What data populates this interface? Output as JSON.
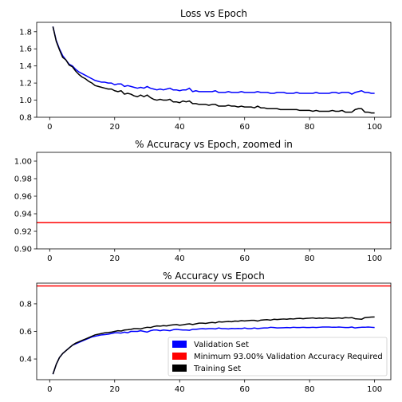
{
  "chart_data": [
    {
      "type": "line",
      "title": "Loss vs Epoch",
      "xlabel": "",
      "ylabel": "",
      "xlim": [
        -4,
        105
      ],
      "ylim": [
        0.8,
        1.91
      ],
      "xticks": [
        0,
        20,
        40,
        60,
        80,
        100
      ],
      "yticks": [
        0.8,
        1.0,
        1.2,
        1.4,
        1.6,
        1.8
      ],
      "ytick_labels": [
        "0.8",
        "1.0",
        "1.2",
        "1.4",
        "1.6",
        "1.8"
      ],
      "grid": false,
      "x_start": 1,
      "x_step": 1,
      "series": [
        {
          "color": "#0000ff",
          "values": [
            1.86,
            1.7,
            1.6,
            1.52,
            1.47,
            1.42,
            1.4,
            1.36,
            1.33,
            1.31,
            1.29,
            1.27,
            1.25,
            1.23,
            1.22,
            1.21,
            1.21,
            1.2,
            1.2,
            1.18,
            1.19,
            1.19,
            1.16,
            1.17,
            1.16,
            1.15,
            1.14,
            1.15,
            1.14,
            1.16,
            1.14,
            1.13,
            1.12,
            1.13,
            1.12,
            1.13,
            1.14,
            1.12,
            1.12,
            1.11,
            1.12,
            1.12,
            1.14,
            1.1,
            1.11,
            1.1,
            1.1,
            1.1,
            1.1,
            1.1,
            1.11,
            1.09,
            1.09,
            1.09,
            1.1,
            1.09,
            1.09,
            1.09,
            1.1,
            1.09,
            1.09,
            1.09,
            1.09,
            1.1,
            1.09,
            1.09,
            1.09,
            1.08,
            1.08,
            1.09,
            1.09,
            1.09,
            1.08,
            1.08,
            1.08,
            1.09,
            1.08,
            1.08,
            1.08,
            1.08,
            1.08,
            1.09,
            1.08,
            1.08,
            1.08,
            1.08,
            1.09,
            1.09,
            1.08,
            1.09,
            1.09,
            1.09,
            1.07,
            1.09,
            1.1,
            1.11,
            1.09,
            1.09,
            1.08,
            1.08
          ]
        },
        {
          "color": "#000000",
          "values": [
            1.86,
            1.69,
            1.59,
            1.5,
            1.47,
            1.41,
            1.39,
            1.34,
            1.3,
            1.27,
            1.25,
            1.22,
            1.2,
            1.17,
            1.16,
            1.15,
            1.14,
            1.13,
            1.13,
            1.11,
            1.1,
            1.11,
            1.07,
            1.08,
            1.07,
            1.05,
            1.04,
            1.06,
            1.04,
            1.06,
            1.03,
            1.01,
            1.0,
            1.01,
            1.0,
            1.0,
            1.01,
            0.98,
            0.98,
            0.97,
            0.99,
            0.98,
            0.99,
            0.96,
            0.96,
            0.95,
            0.95,
            0.95,
            0.94,
            0.95,
            0.95,
            0.93,
            0.93,
            0.93,
            0.94,
            0.93,
            0.93,
            0.92,
            0.93,
            0.92,
            0.92,
            0.92,
            0.91,
            0.93,
            0.91,
            0.91,
            0.9,
            0.9,
            0.9,
            0.9,
            0.89,
            0.89,
            0.89,
            0.89,
            0.89,
            0.89,
            0.88,
            0.88,
            0.88,
            0.88,
            0.87,
            0.88,
            0.87,
            0.87,
            0.87,
            0.87,
            0.88,
            0.87,
            0.87,
            0.88,
            0.86,
            0.86,
            0.86,
            0.89,
            0.9,
            0.9,
            0.86,
            0.86,
            0.85,
            0.85
          ]
        }
      ]
    },
    {
      "type": "line",
      "title": "% Accuracy vs Epoch, zoomed in",
      "xlabel": "",
      "ylabel": "",
      "xlim": [
        -4,
        105
      ],
      "ylim": [
        0.9,
        1.01
      ],
      "xticks": [
        0,
        20,
        40,
        60,
        80,
        100
      ],
      "yticks": [
        0.9,
        0.92,
        0.94,
        0.96,
        0.98,
        1.0
      ],
      "ytick_labels": [
        "0.90",
        "0.92",
        "0.94",
        "0.96",
        "0.98",
        "1.00"
      ],
      "grid": false,
      "hlines": [
        {
          "y": 0.93,
          "color": "#ff0000"
        }
      ],
      "series": []
    },
    {
      "type": "line",
      "title": "% Accuracy vs Epoch",
      "xlabel": "",
      "ylabel": "",
      "xlim": [
        -4,
        105
      ],
      "ylim": [
        0.25,
        0.95
      ],
      "xticks": [
        0,
        20,
        40,
        60,
        80,
        100
      ],
      "yticks": [
        0.4,
        0.6,
        0.8
      ],
      "ytick_labels": [
        "0.4",
        "0.6",
        "0.8"
      ],
      "grid": false,
      "x_start": 1,
      "x_step": 1,
      "legend_position": "lower-right",
      "hlines": [
        {
          "y": 0.93,
          "color": "#ff0000"
        }
      ],
      "legend": [
        {
          "label": "Validation Set",
          "color": "#0000ff"
        },
        {
          "label": "Minimum 93.00% Validation Accuracy Required",
          "color": "#ff0000"
        },
        {
          "label": "Training Set",
          "color": "#000000"
        }
      ],
      "series": [
        {
          "name": "Validation Set",
          "color": "#0000ff",
          "values": [
            0.29,
            0.36,
            0.41,
            0.44,
            0.46,
            0.48,
            0.5,
            0.51,
            0.52,
            0.53,
            0.54,
            0.55,
            0.56,
            0.565,
            0.57,
            0.575,
            0.577,
            0.58,
            0.585,
            0.59,
            0.59,
            0.588,
            0.595,
            0.59,
            0.6,
            0.6,
            0.6,
            0.605,
            0.6,
            0.595,
            0.605,
            0.61,
            0.61,
            0.605,
            0.61,
            0.608,
            0.605,
            0.612,
            0.615,
            0.612,
            0.61,
            0.61,
            0.608,
            0.615,
            0.615,
            0.618,
            0.62,
            0.618,
            0.62,
            0.62,
            0.618,
            0.625,
            0.62,
            0.62,
            0.618,
            0.622,
            0.62,
            0.622,
            0.62,
            0.625,
            0.62,
            0.62,
            0.625,
            0.62,
            0.623,
            0.625,
            0.625,
            0.63,
            0.628,
            0.625,
            0.626,
            0.627,
            0.628,
            0.627,
            0.63,
            0.628,
            0.628,
            0.63,
            0.628,
            0.628,
            0.63,
            0.628,
            0.63,
            0.632,
            0.632,
            0.632,
            0.63,
            0.63,
            0.632,
            0.63,
            0.628,
            0.628,
            0.632,
            0.625,
            0.628,
            0.63,
            0.63,
            0.632,
            0.63,
            0.628
          ]
        },
        {
          "name": "Training Set",
          "color": "#000000",
          "values": [
            0.29,
            0.36,
            0.41,
            0.44,
            0.46,
            0.48,
            0.5,
            0.515,
            0.525,
            0.535,
            0.545,
            0.555,
            0.565,
            0.575,
            0.58,
            0.585,
            0.59,
            0.592,
            0.595,
            0.6,
            0.605,
            0.603,
            0.61,
            0.612,
            0.615,
            0.62,
            0.62,
            0.618,
            0.625,
            0.63,
            0.628,
            0.635,
            0.64,
            0.638,
            0.642,
            0.64,
            0.645,
            0.648,
            0.65,
            0.645,
            0.648,
            0.652,
            0.655,
            0.65,
            0.655,
            0.66,
            0.66,
            0.658,
            0.662,
            0.665,
            0.662,
            0.67,
            0.668,
            0.67,
            0.672,
            0.67,
            0.675,
            0.674,
            0.678,
            0.676,
            0.678,
            0.68,
            0.68,
            0.675,
            0.682,
            0.684,
            0.685,
            0.682,
            0.688,
            0.686,
            0.688,
            0.69,
            0.688,
            0.692,
            0.69,
            0.693,
            0.695,
            0.692,
            0.695,
            0.696,
            0.698,
            0.694,
            0.697,
            0.695,
            0.698,
            0.696,
            0.694,
            0.696,
            0.698,
            0.695,
            0.7,
            0.698,
            0.7,
            0.692,
            0.69,
            0.688,
            0.7,
            0.702,
            0.704,
            0.705
          ]
        }
      ]
    }
  ]
}
